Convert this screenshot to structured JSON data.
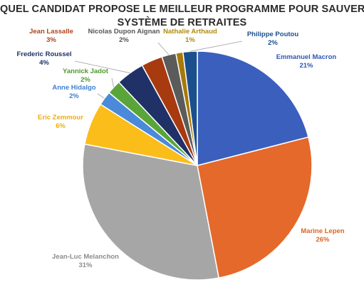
{
  "chart_data": {
    "type": "pie",
    "title_lines": [
      "QUEL CANDIDAT PROPOSE LE MEILLEUR PROGRAMME POUR SAUVER LE",
      "SYSTÈME DE RETRAITES"
    ],
    "slices": [
      {
        "name": "Emmanuel Macron",
        "value": 21,
        "label": "21%",
        "color": "#3a5fbd"
      },
      {
        "name": "Marine Lepen",
        "value": 26,
        "label": "26%",
        "color": "#e4692a"
      },
      {
        "name": "Jean-Luc Melanchon",
        "value": 31,
        "label": "31%",
        "color": "#a6a6a6"
      },
      {
        "name": "Eric Zemmour",
        "value": 6,
        "label": "6%",
        "color": "#fbbd1a"
      },
      {
        "name": "Anne Hidalgo",
        "value": 2,
        "label": "2%",
        "color": "#4a8ad8"
      },
      {
        "name": "Yannick Jadot",
        "value": 2,
        "label": "2%",
        "color": "#5aa53a"
      },
      {
        "name": "Frederic Roussel",
        "value": 4,
        "label": "4%",
        "color": "#1f3166"
      },
      {
        "name": "Jean Lassalle",
        "value": 3,
        "label": "3%",
        "color": "#a83a10"
      },
      {
        "name": "Nicolas Dupon Aignan",
        "value": 2,
        "label": "2%",
        "color": "#5b5b5b"
      },
      {
        "name": "Nathalie Arthaud",
        "value": 1,
        "label": "1%",
        "color": "#a77a08"
      },
      {
        "name": "Philippe Poutou",
        "value": 2,
        "label": "2%",
        "color": "#1b4f8c"
      }
    ]
  }
}
